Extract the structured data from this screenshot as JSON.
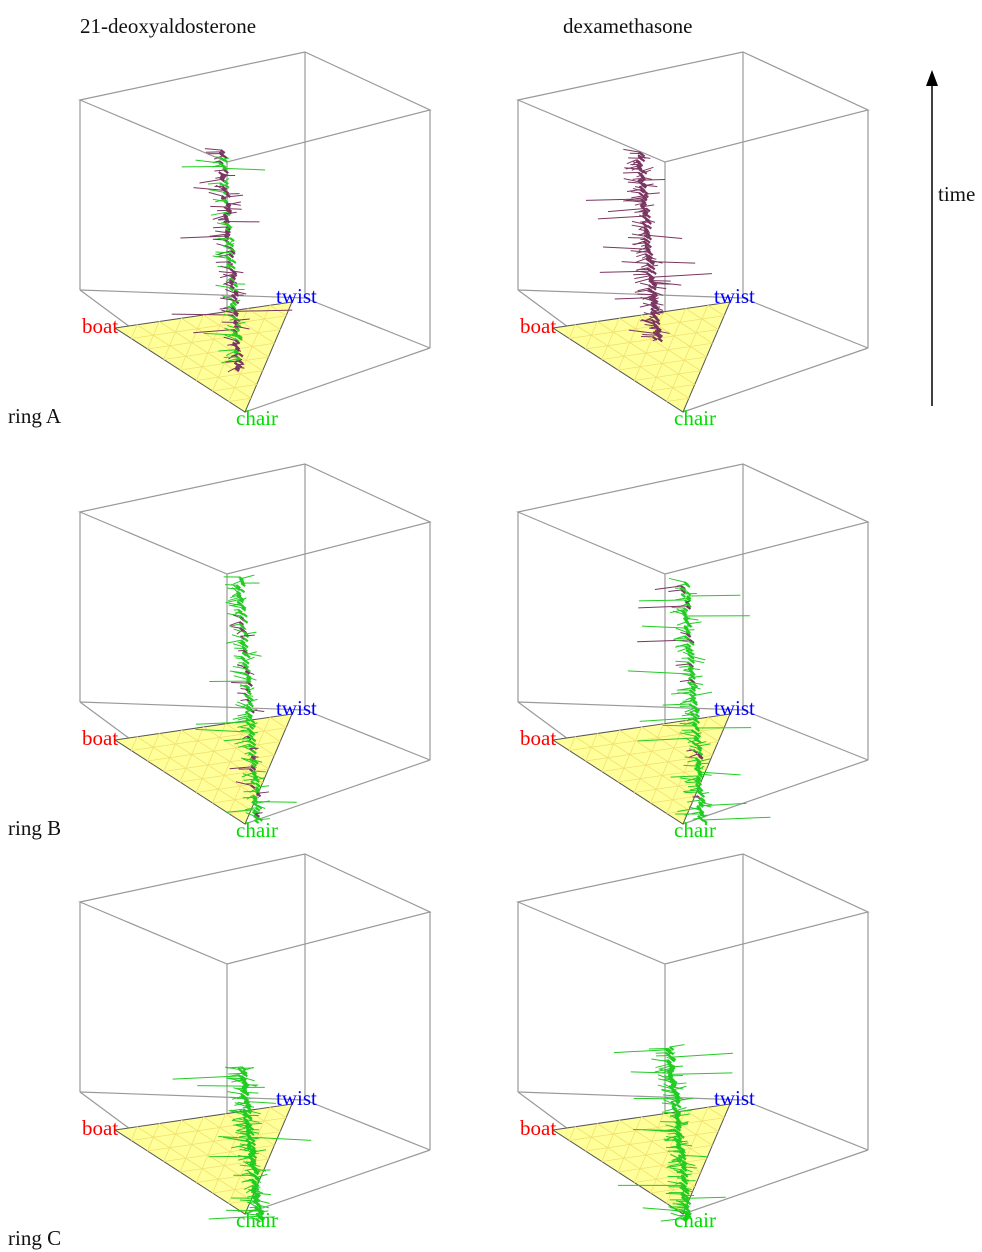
{
  "figure": {
    "columns": [
      {
        "title": "21-deoxyaldosterone"
      },
      {
        "title": "dexamethasone"
      }
    ],
    "rows": [
      {
        "label": "ring A"
      },
      {
        "label": "ring B"
      },
      {
        "label": "ring C"
      }
    ],
    "time_axis": {
      "label": "time"
    },
    "vertex_labels": {
      "boat": "boat",
      "twist": "twist",
      "chair": "chair"
    },
    "colors": {
      "boat": "#ff0000",
      "twist": "#0000ff",
      "chair": "#00dd00",
      "triangle_fill": "#ffff99",
      "triangle_grid": "#f0e070",
      "box_edges": "#999999",
      "trace_green": "#22cc22",
      "trace_purple": "#7a3560"
    },
    "panels": [
      {
        "id": "A-deoxy",
        "trace": "mixed"
      },
      {
        "id": "A-dexa",
        "trace": "purple"
      },
      {
        "id": "B-deoxy",
        "trace": "green"
      },
      {
        "id": "B-dexa",
        "trace": "green"
      },
      {
        "id": "C-deoxy",
        "trace": "green"
      },
      {
        "id": "C-dexa",
        "trace": "green"
      }
    ]
  }
}
